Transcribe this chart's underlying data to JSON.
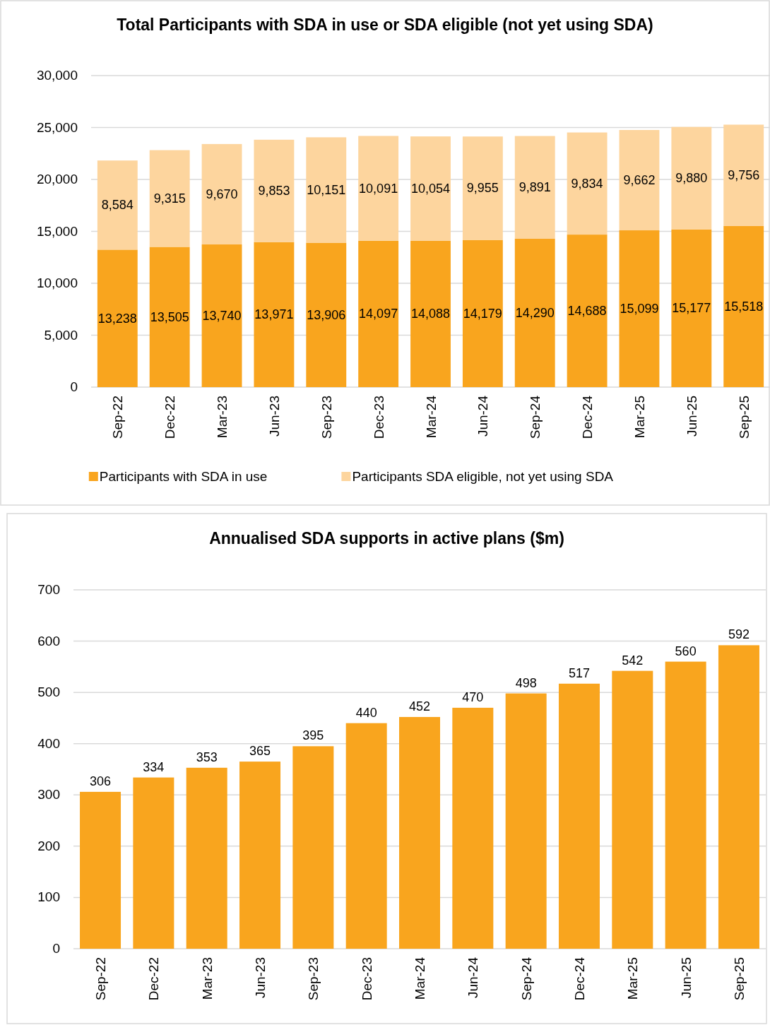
{
  "chart_data": [
    {
      "type": "bar",
      "title": "Total Participants with SDA in use or SDA eligible (not yet using SDA)",
      "categories": [
        "Sep-22",
        "Dec-22",
        "Mar-23",
        "Jun-23",
        "Sep-23",
        "Dec-23",
        "Mar-24",
        "Jun-24",
        "Sep-24",
        "Dec-24",
        "Mar-25",
        "Jun-25",
        "Sep-25"
      ],
      "stacked": true,
      "series": [
        {
          "name": "Participants with SDA in use",
          "color": "#f9a51e",
          "values": [
            13238,
            13505,
            13740,
            13971,
            13906,
            14097,
            14088,
            14179,
            14290,
            14688,
            15099,
            15177,
            15518
          ],
          "value_labels": [
            "13,238",
            "13,505",
            "13,740",
            "13,971",
            "13,906",
            "14,097",
            "14,088",
            "14,179",
            "14,290",
            "14,688",
            "15,099",
            "15,177",
            "15,518"
          ]
        },
        {
          "name": "Participants SDA eligible, not yet using SDA",
          "color": "#fdd59e",
          "values": [
            8584,
            9315,
            9670,
            9853,
            10151,
            10091,
            10054,
            9955,
            9891,
            9834,
            9662,
            9880,
            9756
          ],
          "value_labels": [
            "8,584",
            "9,315",
            "9,670",
            "9,853",
            "10,151",
            "10,091",
            "10,054",
            "9,955",
            "9,891",
            "9,834",
            "9,662",
            "9,880",
            "9,756"
          ]
        }
      ],
      "ylim": [
        0,
        30000
      ],
      "yticks": [
        {
          "value": 0,
          "label": "0"
        },
        {
          "value": 5000,
          "label": "5,000"
        },
        {
          "value": 10000,
          "label": "10,000"
        },
        {
          "value": 15000,
          "label": "15,000"
        },
        {
          "value": 20000,
          "label": "20,000"
        },
        {
          "value": 25000,
          "label": "25,000"
        },
        {
          "value": 30000,
          "label": "30,000"
        }
      ],
      "grid": "y",
      "legend": "bottom"
    },
    {
      "type": "bar",
      "title": "Annualised SDA supports in active plans ($m)",
      "categories": [
        "Sep-22",
        "Dec-22",
        "Mar-23",
        "Jun-23",
        "Sep-23",
        "Dec-23",
        "Mar-24",
        "Jun-24",
        "Sep-24",
        "Dec-24",
        "Mar-25",
        "Jun-25",
        "Sep-25"
      ],
      "values": [
        306,
        334,
        353,
        365,
        395,
        440,
        452,
        470,
        498,
        517,
        542,
        560,
        592
      ],
      "color": "#f9a51e",
      "ylim": [
        0,
        700
      ],
      "yticks": [
        0,
        100,
        200,
        300,
        400,
        500,
        600,
        700
      ],
      "grid": "y",
      "data_labels": true
    }
  ]
}
